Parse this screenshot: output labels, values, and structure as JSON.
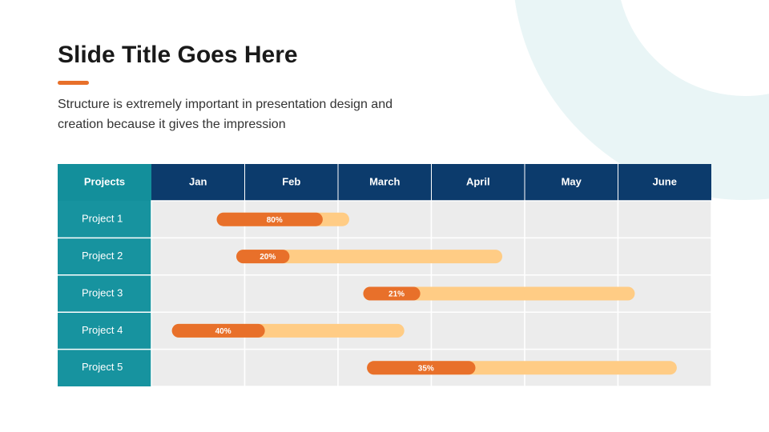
{
  "header": {
    "title": "Slide Title Goes Here",
    "subtitle_lines": [
      "Structure is extremely important in presentation design and",
      "creation because it gives the impression"
    ]
  },
  "gantt": {
    "corner": "Projects",
    "columns": [
      "Jan",
      "Feb",
      "March",
      "April",
      "May",
      "June"
    ],
    "rows": [
      {
        "name": "Project 1",
        "start": 0.7,
        "end": 2.12,
        "progress": 80,
        "progress_label": "80%"
      },
      {
        "name": "Project 2",
        "start": 0.91,
        "end": 3.76,
        "progress": 20,
        "progress_label": "20%"
      },
      {
        "name": "Project 3",
        "start": 2.27,
        "end": 5.18,
        "progress": 21,
        "progress_label": "21%"
      },
      {
        "name": "Project 4",
        "start": 0.22,
        "end": 2.71,
        "progress": 40,
        "progress_label": "40%"
      },
      {
        "name": "Project 5",
        "start": 2.31,
        "end": 5.63,
        "progress": 35,
        "progress_label": "35%"
      }
    ]
  }
}
